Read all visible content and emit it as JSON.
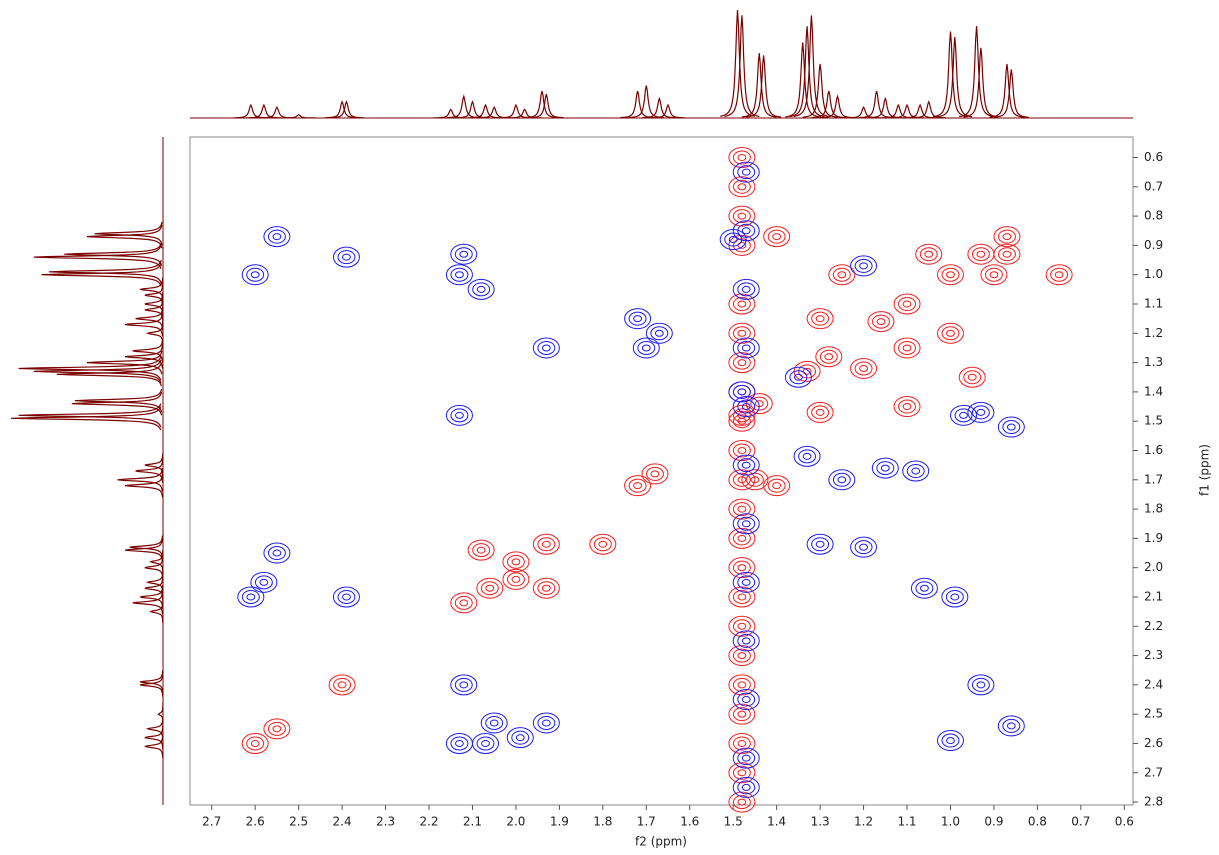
{
  "chart_data": {
    "type": "contour",
    "x_label": "f2 (ppm)",
    "y_label": "f1 (ppm)",
    "xlim": [
      2.75,
      0.58
    ],
    "ylim": [
      0.53,
      2.81
    ],
    "xticks": [
      2.7,
      2.6,
      2.5,
      2.4,
      2.3,
      2.2,
      2.1,
      {
        "value": 2,
        "label": "2.0"
      },
      1.9,
      1.8,
      1.7,
      1.6,
      1.5,
      1.4,
      1.3,
      1.2,
      1.1,
      {
        "value": 1,
        "label": "1.0"
      },
      0.9,
      0.8,
      0.7,
      0.6
    ],
    "yticks": [
      0.6,
      0.7,
      0.8,
      0.9,
      {
        "value": 1,
        "label": "1.0"
      },
      1.1,
      1.2,
      1.3,
      1.4,
      1.5,
      1.6,
      1.7,
      1.8,
      1.9,
      {
        "value": 2,
        "label": "2.0"
      },
      2.1,
      2.2,
      2.3,
      2.4,
      2.5,
      2.6,
      2.7,
      2.8
    ],
    "projection": {
      "color": "#7a0000",
      "ppm": [
        2.61,
        2.58,
        2.55,
        2.5,
        2.4,
        2.39,
        2.15,
        2.12,
        2.1,
        2.07,
        2.05,
        2.0,
        1.98,
        1.94,
        1.93,
        1.72,
        1.7,
        1.67,
        1.65,
        1.49,
        1.48,
        1.44,
        1.43,
        1.34,
        1.33,
        1.32,
        1.3,
        1.28,
        1.26,
        1.2,
        1.17,
        1.15,
        1.12,
        1.1,
        1.07,
        1.05,
        1.0,
        0.99,
        0.94,
        0.93,
        0.87,
        0.86
      ],
      "height": [
        12,
        12,
        10,
        3,
        15,
        15,
        8,
        20,
        15,
        12,
        10,
        12,
        8,
        25,
        22,
        25,
        30,
        18,
        12,
        100,
        95,
        60,
        58,
        70,
        85,
        95,
        50,
        25,
        20,
        10,
        25,
        18,
        12,
        12,
        12,
        15,
        80,
        75,
        85,
        65,
        50,
        45
      ]
    },
    "series": [
      {
        "name": "positive",
        "color": "#ff1a1a",
        "x": [
          2.6,
          2.55,
          2.4,
          2.12,
          2.06,
          2.0,
          1.93,
          1.72,
          1.68,
          1.48,
          1.44,
          1.33,
          1.28,
          1.16,
          1.1,
          1.0,
          0.93,
          0.87,
          2.08,
          1.93,
          2.0,
          1.4,
          1.45,
          1.8,
          1.2,
          1.1,
          1.0,
          1.3,
          1.25,
          1.05,
          0.87,
          0.95,
          1.1,
          1.3,
          0.9,
          0.75,
          1.4,
          1.48,
          1.48,
          1.48,
          1.48,
          1.48,
          1.48,
          1.48,
          1.48,
          1.48,
          1.48,
          1.48,
          1.48,
          1.48,
          1.48,
          1.48,
          1.48,
          1.48,
          1.48,
          1.48,
          1.48,
          1.48,
          1.48
        ],
        "y": [
          2.6,
          2.55,
          2.4,
          2.12,
          2.07,
          1.98,
          1.92,
          1.72,
          1.68,
          1.48,
          1.44,
          1.33,
          1.28,
          1.16,
          1.1,
          1.0,
          0.93,
          0.87,
          1.94,
          2.07,
          2.04,
          1.72,
          1.7,
          1.92,
          1.32,
          1.25,
          1.2,
          1.15,
          1.0,
          0.93,
          0.93,
          1.35,
          1.45,
          1.47,
          1.0,
          1.0,
          0.87,
          0.6,
          0.7,
          0.8,
          0.9,
          1.1,
          1.2,
          1.3,
          1.4,
          1.5,
          1.6,
          1.7,
          1.8,
          1.9,
          2.0,
          2.1,
          2.2,
          2.3,
          2.4,
          2.5,
          2.6,
          2.7,
          2.8
        ]
      },
      {
        "name": "negative",
        "color": "#1a1aff",
        "x": [
          2.55,
          2.6,
          2.39,
          2.13,
          2.12,
          2.08,
          1.93,
          1.72,
          1.67,
          1.7,
          1.33,
          1.25,
          1.15,
          1.08,
          1.3,
          1.2,
          2.58,
          2.55,
          2.61,
          2.39,
          2.12,
          2.13,
          2.07,
          1.99,
          1.93,
          2.05,
          1.06,
          0.99,
          0.93,
          0.86,
          1.0,
          0.86,
          0.93,
          0.97,
          1.5,
          1.48,
          2.13,
          1.2,
          1.35,
          1.47,
          1.47,
          1.47,
          1.47,
          1.47,
          1.47,
          1.47,
          1.47,
          1.47,
          1.47,
          1.47,
          1.47
        ],
        "y": [
          0.87,
          1.0,
          0.94,
          1.0,
          0.93,
          1.05,
          1.25,
          1.15,
          1.2,
          1.25,
          1.62,
          1.7,
          1.66,
          1.67,
          1.92,
          1.93,
          2.05,
          1.95,
          2.1,
          2.1,
          2.4,
          2.6,
          2.6,
          2.58,
          2.53,
          2.53,
          2.07,
          2.1,
          2.4,
          2.54,
          2.59,
          1.52,
          1.47,
          1.48,
          0.88,
          1.4,
          1.48,
          0.97,
          1.35,
          0.65,
          0.85,
          1.05,
          1.25,
          1.45,
          1.65,
          1.85,
          2.05,
          2.25,
          2.45,
          2.65,
          2.75
        ]
      }
    ]
  }
}
